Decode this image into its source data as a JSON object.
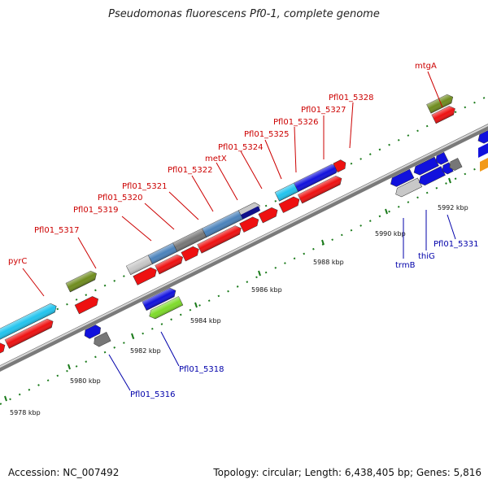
{
  "title": "Pseudomonas fluorescens Pf0-1, complete genome",
  "footer": {
    "accession": "Accession: NC_007492",
    "summary": "Topology: circular; Length: 6,438,405 bp; Genes: 5,816"
  },
  "colors": {
    "red": "#ee1111",
    "blue": "#1111dd",
    "cyan": "#22c4ee",
    "steel": "#4a82bb",
    "gray": "#777777",
    "lightgray": "#c8c8c8",
    "olive": "#6f8c1e",
    "lime": "#7edb2a",
    "navy": "#10108a",
    "orange": "#f29a1a",
    "tick": "#1a7a1a",
    "red_label": "#cc0000",
    "blue_label": "#0000aa"
  },
  "scale": {
    "ticks": [
      {
        "label": "5978 kbp"
      },
      {
        "label": "5980 kbp"
      },
      {
        "label": "5982 kbp"
      },
      {
        "label": "5984 kbp"
      },
      {
        "label": "5986 kbp"
      },
      {
        "label": "5988 kbp"
      },
      {
        "label": "5990 kbp"
      },
      {
        "label": "5992 kbp"
      }
    ]
  },
  "labels": {
    "forward": [
      {
        "text": "pyrC"
      },
      {
        "text": "Pfl01_5317"
      },
      {
        "text": "Pfl01_5319"
      },
      {
        "text": "Pfl01_5320"
      },
      {
        "text": "Pfl01_5321"
      },
      {
        "text": "Pfl01_5322"
      },
      {
        "text": "metX"
      },
      {
        "text": "Pfl01_5324"
      },
      {
        "text": "Pfl01_5325"
      },
      {
        "text": "Pfl01_5326"
      },
      {
        "text": "Pfl01_5327"
      },
      {
        "text": "Pfl01_5328"
      },
      {
        "text": "mtgA"
      }
    ],
    "reverse": [
      {
        "text": "Pfl01_5316"
      },
      {
        "text": "Pfl01_5318"
      },
      {
        "text": "trmB"
      },
      {
        "text": "thiG"
      },
      {
        "text": "Pfl01_5331"
      }
    ]
  }
}
